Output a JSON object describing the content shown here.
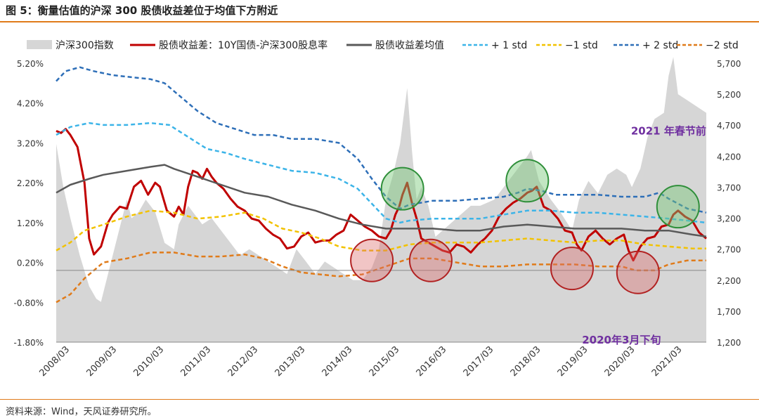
{
  "title": "图 5：衡量估值的沪深 300 股债收益差位于均值下方附近",
  "source": "资料来源：Wind，天风证券研究所。",
  "chart_data": {
    "type": "line",
    "legend": [
      {
        "name": "沪深300指数",
        "style": "area",
        "color": "#d6d6d6"
      },
      {
        "name": "股债收益差：10Y国债-沪深300股息率",
        "style": "solid",
        "color": "#c00000"
      },
      {
        "name": "股债收益差均值",
        "style": "solid",
        "color": "#595959"
      },
      {
        "name": "+ 1 std",
        "style": "dash",
        "color": "#3cb4e8"
      },
      {
        "name": "−1 std",
        "style": "dash",
        "color": "#f2c200"
      },
      {
        "name": "+ 2 std",
        "style": "dash",
        "color": "#2e6fb8"
      },
      {
        "name": "−2 std",
        "style": "dash",
        "color": "#e07b1a"
      }
    ],
    "x_ticks": [
      "2008/03",
      "2009/03",
      "2010/03",
      "2011/03",
      "2012/03",
      "2013/03",
      "2014/03",
      "2015/03",
      "2016/03",
      "2017/03",
      "2018/03",
      "2019/03",
      "2020/03",
      "2021/03"
    ],
    "x_range": [
      2008.0,
      2021.8
    ],
    "y_left": {
      "ticks": [
        "5.20%",
        "4.20%",
        "3.20%",
        "2.20%",
        "1.20%",
        "0.20%",
        "-0.80%",
        "-1.80%"
      ],
      "values": [
        5.2,
        4.2,
        3.2,
        2.2,
        1.2,
        0.2,
        -0.8,
        -1.8
      ],
      "range": [
        -1.8,
        5.2
      ]
    },
    "y_right": {
      "ticks": [
        "5,700",
        "5,200",
        "4,700",
        "4,200",
        "3,700",
        "3,200",
        "2,700",
        "2,200",
        "1,700",
        "1,200"
      ],
      "values": [
        5700,
        5200,
        4700,
        4200,
        3700,
        3200,
        2700,
        2200,
        1700,
        1200
      ],
      "range": [
        1200,
        5700
      ]
    },
    "annotations": [
      {
        "text": "2021 年春节前",
        "x": 2021.0,
        "y": 3.5
      },
      {
        "text": "2020年3月下旬",
        "x": 2020.0,
        "y": -1.75
      }
    ],
    "series": [
      {
        "name": "沪深300指数",
        "axis": "right",
        "color": "#d6d6d6",
        "x": [
          2008.0,
          2008.15,
          2008.3,
          2008.5,
          2008.7,
          2008.85,
          2008.95,
          2009.1,
          2009.3,
          2009.5,
          2009.6,
          2009.75,
          2009.9,
          2010.1,
          2010.3,
          2010.5,
          2010.6,
          2010.8,
          2010.9,
          2011.1,
          2011.3,
          2011.5,
          2011.7,
          2011.9,
          2012.1,
          2012.3,
          2012.5,
          2012.7,
          2012.9,
          2013.1,
          2013.3,
          2013.5,
          2013.7,
          2013.9,
          2014.1,
          2014.3,
          2014.5,
          2014.7,
          2014.85,
          2015.0,
          2015.15,
          2015.3,
          2015.4,
          2015.45,
          2015.55,
          2015.65,
          2015.75,
          2015.9,
          2016.05,
          2016.2,
          2016.5,
          2016.8,
          2017.0,
          2017.3,
          2017.5,
          2017.8,
          2018.0,
          2018.08,
          2018.25,
          2018.5,
          2018.7,
          2018.95,
          2019.1,
          2019.3,
          2019.5,
          2019.7,
          2019.9,
          2020.1,
          2020.22,
          2020.4,
          2020.55,
          2020.7,
          2020.9,
          2021.0,
          2021.1,
          2021.2,
          2021.4,
          2021.6,
          2021.8
        ],
        "y": [
          4400,
          3700,
          3200,
          2600,
          2100,
          1900,
          1850,
          2300,
          2900,
          3500,
          3200,
          3300,
          3500,
          3300,
          2800,
          2700,
          3100,
          3400,
          3300,
          3100,
          3200,
          3000,
          2800,
          2600,
          2700,
          2600,
          2500,
          2400,
          2300,
          2700,
          2500,
          2300,
          2500,
          2400,
          2300,
          2200,
          2200,
          2400,
          2700,
          3500,
          3900,
          4400,
          5000,
          5300,
          4300,
          3500,
          3700,
          3400,
          2900,
          3000,
          3200,
          3400,
          3400,
          3500,
          3700,
          4000,
          4200,
          4300,
          3800,
          3500,
          3300,
          3000,
          3500,
          3800,
          3600,
          3900,
          4000,
          3900,
          3700,
          4000,
          4500,
          4800,
          4900,
          5500,
          5800,
          5200,
          5100,
          5000,
          4900
        ]
      },
      {
        "name": "股债收益差：10Y国债-沪深300股息率",
        "axis": "left",
        "color": "#c00000",
        "x": [
          2008.0,
          2008.1,
          2008.2,
          2008.3,
          2008.45,
          2008.6,
          2008.7,
          2008.8,
          2008.95,
          2009.1,
          2009.2,
          2009.35,
          2009.5,
          2009.65,
          2009.8,
          2009.95,
          2010.1,
          2010.2,
          2010.35,
          2010.5,
          2010.6,
          2010.7,
          2010.8,
          2010.9,
          2011.0,
          2011.1,
          2011.2,
          2011.3,
          2011.4,
          2011.55,
          2011.7,
          2011.85,
          2012.0,
          2012.15,
          2012.3,
          2012.45,
          2012.6,
          2012.75,
          2012.9,
          2013.05,
          2013.2,
          2013.35,
          2013.5,
          2013.65,
          2013.8,
          2013.95,
          2014.1,
          2014.25,
          2014.4,
          2014.55,
          2014.7,
          2014.85,
          2015.0,
          2015.1,
          2015.2,
          2015.28,
          2015.35,
          2015.45,
          2015.55,
          2015.65,
          2015.75,
          2015.9,
          2016.05,
          2016.2,
          2016.35,
          2016.5,
          2016.65,
          2016.8,
          2016.95,
          2017.1,
          2017.25,
          2017.4,
          2017.55,
          2017.7,
          2017.85,
          2018.0,
          2018.1,
          2018.2,
          2018.35,
          2018.5,
          2018.65,
          2018.8,
          2018.95,
          2019.05,
          2019.15,
          2019.3,
          2019.45,
          2019.6,
          2019.75,
          2019.9,
          2020.05,
          2020.15,
          2020.25,
          2020.4,
          2020.55,
          2020.7,
          2020.85,
          2021.0,
          2021.1,
          2021.2,
          2021.35,
          2021.5,
          2021.65,
          2021.8
        ],
        "y": [
          3.5,
          3.45,
          3.55,
          3.4,
          3.1,
          2.2,
          0.8,
          0.4,
          0.6,
          1.2,
          1.4,
          1.6,
          1.55,
          2.1,
          2.25,
          1.9,
          2.2,
          2.1,
          1.5,
          1.35,
          1.6,
          1.4,
          2.1,
          2.5,
          2.45,
          2.3,
          2.55,
          2.35,
          2.2,
          2.05,
          1.8,
          1.6,
          1.5,
          1.3,
          1.25,
          1.05,
          0.9,
          0.8,
          0.55,
          0.6,
          0.85,
          0.95,
          0.7,
          0.75,
          0.75,
          0.9,
          1.0,
          1.4,
          1.25,
          1.1,
          1.0,
          0.85,
          0.8,
          1.0,
          1.4,
          1.6,
          1.9,
          2.2,
          1.7,
          1.3,
          0.8,
          0.7,
          0.6,
          0.5,
          0.45,
          0.65,
          0.6,
          0.45,
          0.65,
          0.8,
          1.0,
          1.35,
          1.55,
          1.7,
          1.8,
          1.95,
          2.0,
          2.1,
          1.6,
          1.5,
          1.3,
          1.0,
          0.95,
          0.65,
          0.5,
          0.85,
          1.0,
          0.8,
          0.65,
          0.8,
          0.9,
          0.5,
          0.25,
          0.6,
          0.8,
          0.85,
          1.1,
          1.15,
          1.4,
          1.5,
          1.35,
          1.25,
          0.95,
          0.8
        ]
      },
      {
        "name": "股债收益差均值",
        "axis": "left",
        "color": "#595959",
        "x": [
          2008.0,
          2008.3,
          2008.7,
          2009.0,
          2009.5,
          2010.0,
          2010.3,
          2010.5,
          2011.0,
          2011.5,
          2012.0,
          2012.5,
          2013.0,
          2013.5,
          2014.0,
          2014.5,
          2015.0,
          2015.5,
          2016.0,
          2016.5,
          2017.0,
          2017.5,
          2018.0,
          2018.5,
          2019.0,
          2019.5,
          2020.0,
          2020.5,
          2021.0,
          2021.5,
          2021.8
        ],
        "y": [
          1.95,
          2.15,
          2.3,
          2.4,
          2.5,
          2.6,
          2.65,
          2.55,
          2.35,
          2.15,
          1.95,
          1.85,
          1.65,
          1.5,
          1.3,
          1.15,
          1.05,
          1.05,
          1.05,
          1.0,
          1.0,
          1.1,
          1.15,
          1.1,
          1.05,
          1.05,
          1.05,
          1.0,
          1.0,
          0.9,
          0.85
        ]
      },
      {
        "name": "+ 1 std",
        "axis": "left",
        "color": "#3cb4e8",
        "x": [
          2008.0,
          2008.3,
          2008.7,
          2009.0,
          2009.5,
          2010.0,
          2010.4,
          2010.8,
          2011.2,
          2011.6,
          2012.0,
          2012.5,
          2013.0,
          2013.5,
          2014.0,
          2014.4,
          2014.8,
          2015.0,
          2015.3,
          2015.5,
          2016.0,
          2016.5,
          2017.0,
          2017.5,
          2018.0,
          2018.5,
          2019.0,
          2019.5,
          2020.0,
          2020.5,
          2021.0,
          2021.4,
          2021.8
        ],
        "y": [
          3.4,
          3.6,
          3.7,
          3.65,
          3.65,
          3.7,
          3.65,
          3.35,
          3.05,
          2.95,
          2.8,
          2.65,
          2.5,
          2.45,
          2.3,
          2.05,
          1.55,
          1.3,
          1.2,
          1.25,
          1.3,
          1.3,
          1.3,
          1.4,
          1.5,
          1.5,
          1.45,
          1.45,
          1.4,
          1.35,
          1.3,
          1.25,
          1.2
        ]
      },
      {
        "name": "−1 std",
        "axis": "left",
        "color": "#f2c200",
        "x": [
          2008.0,
          2008.3,
          2008.6,
          2009.0,
          2009.5,
          2010.0,
          2010.5,
          2011.0,
          2011.5,
          2012.0,
          2012.4,
          2012.8,
          2013.2,
          2013.6,
          2014.0,
          2014.5,
          2015.0,
          2015.5,
          2016.0,
          2016.5,
          2017.0,
          2017.5,
          2018.0,
          2018.5,
          2019.0,
          2019.5,
          2020.0,
          2020.5,
          2021.0,
          2021.5,
          2021.8
        ],
        "y": [
          0.5,
          0.7,
          1.0,
          1.15,
          1.35,
          1.5,
          1.45,
          1.3,
          1.35,
          1.45,
          1.3,
          1.05,
          0.95,
          0.8,
          0.6,
          0.5,
          0.5,
          0.65,
          0.7,
          0.7,
          0.7,
          0.75,
          0.8,
          0.75,
          0.7,
          0.75,
          0.75,
          0.65,
          0.6,
          0.55,
          0.55
        ]
      },
      {
        "name": "+ 2 std",
        "axis": "left",
        "color": "#2e6fb8",
        "x": [
          2008.0,
          2008.2,
          2008.5,
          2008.8,
          2009.2,
          2009.6,
          2010.0,
          2010.3,
          2010.6,
          2011.0,
          2011.4,
          2011.8,
          2012.2,
          2012.6,
          2013.0,
          2013.5,
          2014.0,
          2014.4,
          2014.7,
          2015.0,
          2015.3,
          2015.5,
          2016.0,
          2016.5,
          2017.0,
          2017.5,
          2017.8,
          2018.0,
          2018.3,
          2018.6,
          2019.0,
          2019.5,
          2020.0,
          2020.5,
          2020.8,
          2021.0,
          2021.4,
          2021.8
        ],
        "y": [
          4.75,
          5.0,
          5.1,
          5.0,
          4.9,
          4.85,
          4.8,
          4.7,
          4.4,
          4.0,
          3.7,
          3.55,
          3.4,
          3.4,
          3.3,
          3.3,
          3.2,
          2.8,
          2.3,
          1.85,
          1.55,
          1.65,
          1.75,
          1.75,
          1.8,
          1.85,
          1.95,
          2.05,
          2.0,
          1.9,
          1.9,
          1.9,
          1.85,
          1.85,
          1.95,
          1.8,
          1.55,
          1.45
        ]
      },
      {
        "name": "−2 std",
        "axis": "left",
        "color": "#e07b1a",
        "x": [
          2008.0,
          2008.3,
          2008.6,
          2009.0,
          2009.5,
          2010.0,
          2010.5,
          2011.0,
          2011.5,
          2012.0,
          2012.4,
          2012.8,
          2013.2,
          2013.6,
          2014.0,
          2014.5,
          2015.0,
          2015.5,
          2016.0,
          2016.5,
          2017.0,
          2017.5,
          2018.0,
          2018.5,
          2019.0,
          2019.5,
          2020.0,
          2020.3,
          2020.7,
          2021.0,
          2021.4,
          2021.8
        ],
        "y": [
          -0.8,
          -0.6,
          -0.2,
          0.2,
          0.3,
          0.45,
          0.45,
          0.35,
          0.35,
          0.4,
          0.3,
          0.1,
          -0.05,
          -0.1,
          -0.15,
          -0.1,
          0.1,
          0.3,
          0.3,
          0.2,
          0.1,
          0.1,
          0.15,
          0.15,
          0.15,
          0.1,
          0.1,
          0.0,
          0.0,
          0.15,
          0.25,
          0.25
        ]
      }
    ],
    "circles": [
      {
        "color": "green",
        "x": 2015.35,
        "y": 2.05
      },
      {
        "color": "green",
        "x": 2018.0,
        "y": 2.25
      },
      {
        "color": "green",
        "x": 2021.2,
        "y": 1.6
      },
      {
        "color": "red",
        "x": 2014.7,
        "y": 0.25
      },
      {
        "color": "red",
        "x": 2015.95,
        "y": 0.25
      },
      {
        "color": "red",
        "x": 2018.95,
        "y": 0.05
      },
      {
        "color": "red",
        "x": 2020.35,
        "y": -0.05
      }
    ],
    "grid": false
  }
}
